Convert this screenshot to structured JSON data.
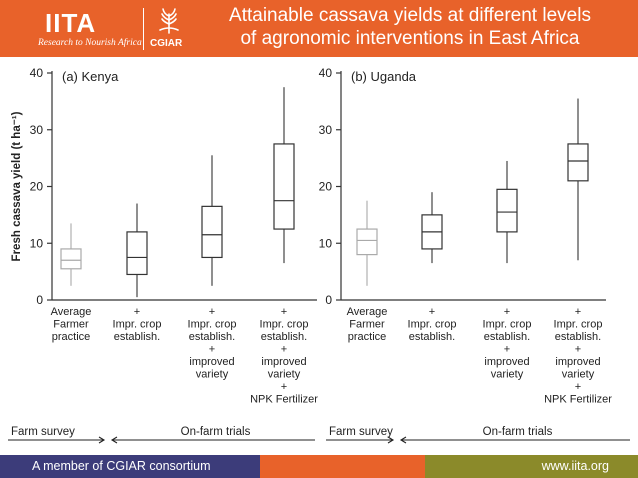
{
  "header": {
    "logo_text": "IITA",
    "logo_tagline": "Research to Nourish Africa",
    "cgiar_text": "CGIAR",
    "title_line1": "Attainable cassava yields at different levels",
    "title_line2": "of agronomic interventions in East Africa",
    "background_color": "#e8622a"
  },
  "chart_data": [
    {
      "type": "box",
      "panel_label": "(a) Kenya",
      "ylabel": "Fresh cassava yield (t ha⁻¹)",
      "ylim": [
        0,
        40
      ],
      "yticks": [
        0,
        10,
        20,
        30,
        40
      ],
      "categories": [
        [
          "Average",
          "Farmer",
          "practice"
        ],
        [
          "+",
          "Impr. crop",
          "establish."
        ],
        [
          "+",
          "Impr. crop",
          "establish.",
          "+",
          "improved",
          "variety"
        ],
        [
          "+",
          "Impr. crop",
          "establish.",
          "+",
          "improved",
          "variety",
          "+",
          "NPK Fertilizer"
        ]
      ],
      "boxes": [
        {
          "min": 2.5,
          "q1": 5.5,
          "median": 7,
          "q3": 9,
          "max": 13.5,
          "color": "#aaaaaa"
        },
        {
          "min": 0.5,
          "q1": 4.5,
          "median": 7.5,
          "q3": 12,
          "max": 17
        },
        {
          "min": 2.5,
          "q1": 7.5,
          "median": 11.5,
          "q3": 16.5,
          "max": 25.5
        },
        {
          "min": 6.5,
          "q1": 12.5,
          "median": 17.5,
          "q3": 27.5,
          "max": 37.5
        }
      ]
    },
    {
      "type": "box",
      "panel_label": "(b) Uganda",
      "ylim": [
        0,
        40
      ],
      "yticks": [
        0,
        10,
        20,
        30,
        40
      ],
      "categories": [
        [
          "Average",
          "Farmer",
          "practice"
        ],
        [
          "+",
          "Impr. crop",
          "establish."
        ],
        [
          "+",
          "Impr. crop",
          "establish.",
          "+",
          "improved",
          "variety"
        ],
        [
          "+",
          "Impr. crop",
          "establish.",
          "+",
          "improved",
          "variety",
          "+",
          "NPK Fertilizer"
        ]
      ],
      "boxes": [
        {
          "min": 2.5,
          "q1": 8,
          "median": 10.5,
          "q3": 12.5,
          "max": 17.5,
          "color": "#aaaaaa"
        },
        {
          "min": 6.5,
          "q1": 9,
          "median": 12,
          "q3": 15,
          "max": 19
        },
        {
          "min": 6.5,
          "q1": 12,
          "median": 15.5,
          "q3": 19.5,
          "max": 24.5
        },
        {
          "min": 7,
          "q1": 21,
          "median": 24.5,
          "q3": 27.5,
          "max": 35.5
        }
      ]
    }
  ],
  "brackets": [
    {
      "farm_survey": "Farm survey",
      "on_farm_trials": "On-farm trials"
    },
    {
      "farm_survey": "Farm survey",
      "on_farm_trials": "On-farm trials"
    }
  ],
  "footer": {
    "left_text": "A member of CGIAR consortium",
    "right_text": "www.iita.org",
    "colors": [
      "#3c3c7a",
      "#e8622a",
      "#8b8a2a"
    ]
  }
}
